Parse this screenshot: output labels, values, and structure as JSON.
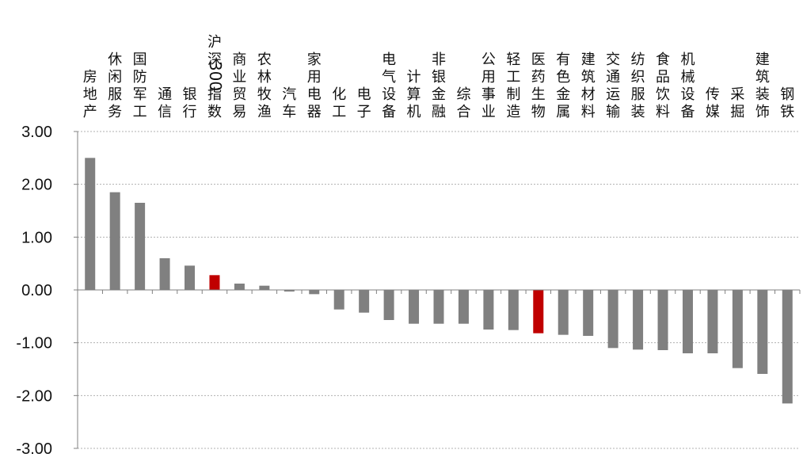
{
  "chart_data": {
    "type": "bar",
    "title": "",
    "xlabel": "",
    "ylabel": "",
    "ylim": [
      -3,
      3
    ],
    "yticks": [
      "3.00",
      "2.00",
      "1.00",
      "0.00",
      "-1.00",
      "-2.00",
      "-3.00"
    ],
    "grid": "horizontal dashed",
    "categories": [
      "房地产",
      "休闲服务",
      "国防军工",
      "通信",
      "银行",
      "沪深300指数",
      "商业贸易",
      "农林牧渔",
      "汽车",
      "家用电器",
      "化工",
      "电子",
      "电气设备",
      "计算机",
      "非银金融",
      "综合",
      "公用事业",
      "轻工制造",
      "医药生物",
      "有色金属",
      "建筑材料",
      "交通运输",
      "纺织服装",
      "食品饮料",
      "机械设备",
      "传媒",
      "采掘",
      "建筑装饰",
      "钢铁"
    ],
    "values": [
      2.5,
      1.85,
      1.65,
      0.6,
      0.46,
      0.28,
      0.12,
      0.08,
      -0.03,
      -0.08,
      -0.37,
      -0.43,
      -0.57,
      -0.64,
      -0.64,
      -0.64,
      -0.75,
      -0.76,
      -0.82,
      -0.85,
      -0.87,
      -1.1,
      -1.13,
      -1.14,
      -1.2,
      -1.2,
      -1.48,
      -1.59,
      -2.15
    ],
    "highlight_categories": [
      "沪深300指数",
      "医药生物"
    ],
    "colors": {
      "bar": "#808080",
      "highlight": "#c00000",
      "axis": "#808080",
      "grid": "#b0b0b0"
    }
  }
}
